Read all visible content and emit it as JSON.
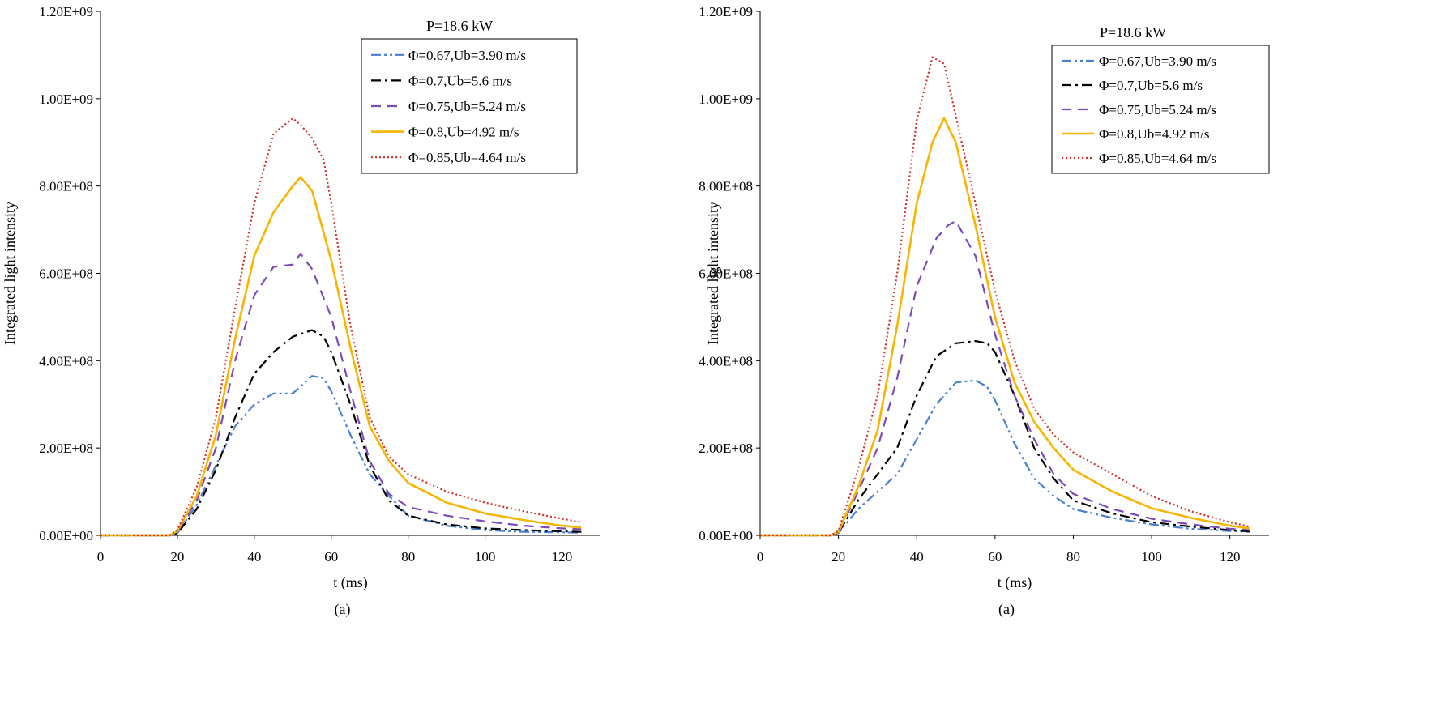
{
  "chart_data": [
    {
      "type": "line",
      "title": "P=18.6 kW",
      "xlabel": "t (ms)",
      "ylabel": "Integrated light intensity",
      "caption": "(a)",
      "xlim": [
        0,
        130
      ],
      "ylim": [
        0,
        1200000000
      ],
      "xticks": [
        0,
        20,
        40,
        60,
        80,
        100,
        120
      ],
      "xtick_labels": [
        "0",
        "20",
        "40",
        "60",
        "80",
        "100",
        "120"
      ],
      "yticks": [
        0,
        200000000,
        400000000,
        600000000,
        800000000,
        1000000000,
        1200000000
      ],
      "ytick_labels": [
        "0.00E+00",
        "2.00E+08",
        "4.00E+08",
        "6.00E+08",
        "8.00E+08",
        "1.00E+09",
        "1.20E+09"
      ],
      "grid": false,
      "legend_position": "top-right",
      "series": [
        {
          "name": "Φ=0.67,Ub=3.90 m/s",
          "color": "#4a7fd1",
          "dash": "dashdotdot",
          "x": [
            0,
            18,
            20,
            25,
            30,
            35,
            40,
            45,
            50,
            55,
            58,
            60,
            65,
            70,
            75,
            80,
            90,
            100,
            110,
            120,
            125
          ],
          "y": [
            0,
            0,
            5000000,
            70000000,
            160000000,
            250000000,
            300000000,
            325000000,
            325000000,
            365000000,
            360000000,
            330000000,
            230000000,
            140000000,
            90000000,
            45000000,
            22000000,
            12000000,
            8000000,
            7000000,
            6000000
          ]
        },
        {
          "name": "Φ=0.7,Ub=5.6 m/s",
          "color": "#000000",
          "dash": "dashdot",
          "x": [
            0,
            18,
            20,
            25,
            30,
            35,
            40,
            45,
            50,
            55,
            58,
            60,
            65,
            70,
            75,
            80,
            90,
            100,
            110,
            120,
            125
          ],
          "y": [
            0,
            0,
            5000000,
            60000000,
            150000000,
            270000000,
            370000000,
            420000000,
            455000000,
            470000000,
            455000000,
            420000000,
            300000000,
            160000000,
            80000000,
            45000000,
            25000000,
            16000000,
            12000000,
            9000000,
            8000000
          ]
        },
        {
          "name": "Φ=0.75,Ub=5.24 m/s",
          "color": "#7b4bb8",
          "dash": "dash",
          "x": [
            0,
            18,
            20,
            25,
            30,
            35,
            40,
            45,
            50,
            52,
            55,
            60,
            65,
            70,
            75,
            80,
            90,
            100,
            110,
            120,
            125
          ],
          "y": [
            0,
            0,
            8000000,
            80000000,
            200000000,
            400000000,
            550000000,
            615000000,
            620000000,
            645000000,
            610000000,
            500000000,
            330000000,
            170000000,
            95000000,
            65000000,
            45000000,
            32000000,
            22000000,
            16000000,
            14000000
          ]
        },
        {
          "name": "Φ=0.8,Ub=4.92 m/s",
          "color": "#f7b500",
          "dash": "solid",
          "x": [
            0,
            18,
            20,
            25,
            30,
            35,
            40,
            45,
            50,
            52,
            55,
            60,
            65,
            70,
            75,
            80,
            90,
            100,
            110,
            120,
            125
          ],
          "y": [
            0,
            0,
            10000000,
            90000000,
            230000000,
            450000000,
            640000000,
            740000000,
            800000000,
            820000000,
            790000000,
            630000000,
            430000000,
            250000000,
            170000000,
            120000000,
            75000000,
            50000000,
            35000000,
            22000000,
            18000000
          ]
        },
        {
          "name": "Φ=0.85,Ub=4.64 m/s",
          "color": "#d0312d",
          "dash": "dot",
          "x": [
            0,
            18,
            20,
            25,
            30,
            35,
            40,
            45,
            50,
            52,
            55,
            58,
            60,
            65,
            70,
            75,
            80,
            90,
            100,
            110,
            120,
            125
          ],
          "y": [
            0,
            0,
            12000000,
            110000000,
            270000000,
            520000000,
            760000000,
            920000000,
            955000000,
            940000000,
            910000000,
            860000000,
            760000000,
            480000000,
            270000000,
            180000000,
            140000000,
            100000000,
            75000000,
            55000000,
            38000000,
            30000000
          ]
        }
      ]
    },
    {
      "type": "line",
      "title": "P=18.6 kW",
      "xlabel": "t (ms)",
      "ylabel": "Integrated light intensity",
      "caption": "(a)",
      "xlim": [
        0,
        130
      ],
      "ylim": [
        0,
        1200000000
      ],
      "xticks": [
        0,
        20,
        40,
        60,
        80,
        100,
        120
      ],
      "xtick_labels": [
        "0",
        "20",
        "40",
        "60",
        "80",
        "100",
        "120"
      ],
      "yticks": [
        0,
        200000000,
        400000000,
        600000000,
        800000000,
        1000000000,
        1200000000
      ],
      "ytick_labels": [
        "0.00E+00",
        "2.00E+08",
        "4.00E+08",
        "6.00E+08",
        "8.00E+08",
        "1.00E+09",
        "1.20E+09"
      ],
      "grid": false,
      "legend_position": "top-right",
      "series": [
        {
          "name": "Φ=0.67,Ub=3.90 m/s",
          "color": "#4a7fd1",
          "dash": "dashdotdot",
          "x": [
            0,
            18,
            20,
            25,
            30,
            35,
            40,
            45,
            50,
            55,
            58,
            60,
            65,
            70,
            75,
            80,
            90,
            100,
            110,
            120,
            125
          ],
          "y": [
            0,
            0,
            5000000,
            60000000,
            100000000,
            140000000,
            220000000,
            300000000,
            350000000,
            355000000,
            340000000,
            310000000,
            210000000,
            130000000,
            90000000,
            60000000,
            40000000,
            25000000,
            15000000,
            10000000,
            8000000
          ]
        },
        {
          "name": "Φ=0.7,Ub=5.6 m/s",
          "color": "#000000",
          "dash": "dashdot",
          "x": [
            0,
            18,
            20,
            25,
            30,
            35,
            40,
            45,
            50,
            55,
            58,
            60,
            65,
            70,
            75,
            80,
            90,
            100,
            110,
            120,
            125
          ],
          "y": [
            0,
            0,
            6000000,
            80000000,
            140000000,
            200000000,
            320000000,
            410000000,
            440000000,
            445000000,
            440000000,
            420000000,
            320000000,
            200000000,
            130000000,
            80000000,
            50000000,
            30000000,
            20000000,
            12000000,
            9000000
          ]
        },
        {
          "name": "Φ=0.75,Ub=5.24 m/s",
          "color": "#7b4bb8",
          "dash": "dash",
          "x": [
            0,
            18,
            20,
            25,
            30,
            35,
            40,
            45,
            48,
            50,
            55,
            60,
            65,
            70,
            75,
            80,
            90,
            100,
            110,
            120,
            125
          ],
          "y": [
            0,
            0,
            6000000,
            100000000,
            200000000,
            360000000,
            570000000,
            680000000,
            710000000,
            720000000,
            640000000,
            460000000,
            320000000,
            220000000,
            140000000,
            95000000,
            60000000,
            38000000,
            25000000,
            15000000,
            12000000
          ]
        },
        {
          "name": "Φ=0.8,Ub=4.92 m/s",
          "color": "#f7b500",
          "dash": "solid",
          "x": [
            0,
            18,
            20,
            25,
            30,
            35,
            40,
            44,
            47,
            50,
            55,
            60,
            65,
            70,
            75,
            80,
            90,
            100,
            110,
            120,
            125
          ],
          "y": [
            0,
            0,
            8000000,
            110000000,
            240000000,
            480000000,
            760000000,
            900000000,
            955000000,
            900000000,
            710000000,
            500000000,
            350000000,
            260000000,
            200000000,
            150000000,
            100000000,
            62000000,
            40000000,
            22000000,
            16000000
          ]
        },
        {
          "name": "Φ=0.85,Ub=4.64 m/s",
          "color": "#d0312d",
          "dash": "dot",
          "x": [
            0,
            18,
            20,
            25,
            30,
            35,
            40,
            44,
            47,
            50,
            55,
            60,
            65,
            70,
            75,
            80,
            90,
            100,
            110,
            120,
            125
          ],
          "y": [
            0,
            0,
            10000000,
            150000000,
            320000000,
            600000000,
            950000000,
            1095000000,
            1080000000,
            960000000,
            760000000,
            560000000,
            400000000,
            290000000,
            230000000,
            190000000,
            140000000,
            90000000,
            55000000,
            30000000,
            20000000
          ]
        }
      ]
    }
  ]
}
